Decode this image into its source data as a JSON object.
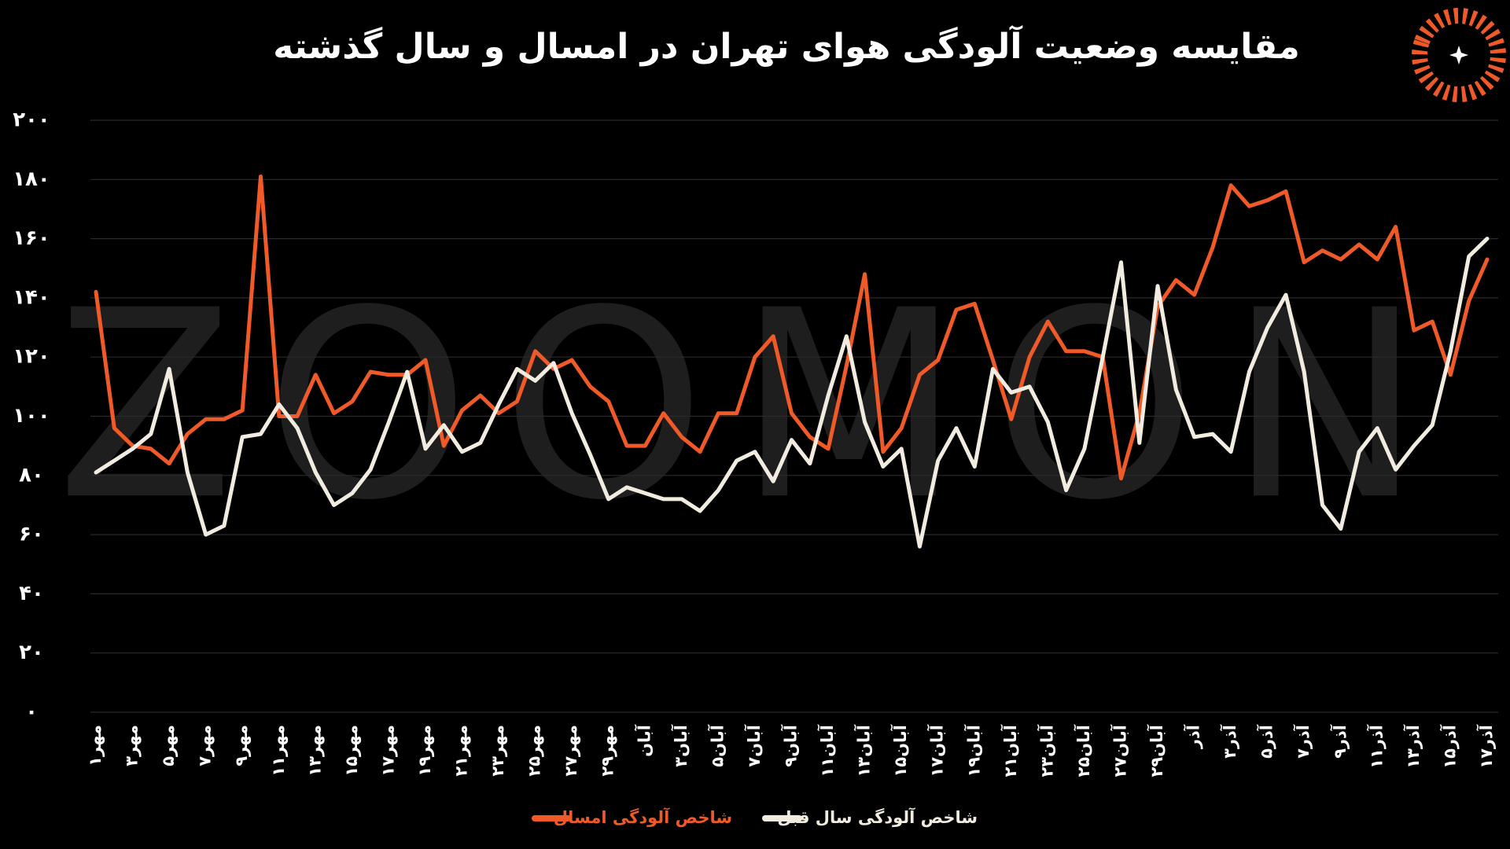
{
  "chart_data": {
    "type": "line",
    "title": "مقایسه وضعیت آلودگی هوای تهران در امسال و سال گذشته",
    "watermark": "ZOOMON",
    "categories": [
      "۱مهر",
      null,
      "۳مهر",
      null,
      "۵مهر",
      null,
      "۷مهر",
      null,
      "۹مهر",
      null,
      "۱۱مهر",
      null,
      "۱۳مهر",
      null,
      "۱۵مهر",
      null,
      "۱۷مهر",
      null,
      "۱۹مهر",
      null,
      "۲۱مهر",
      null,
      "۲۳مهر",
      null,
      "۲۵مهر",
      null,
      "۲۷مهر",
      null,
      "۲۹مهر",
      null,
      "آبان",
      null,
      "۳آبان",
      null,
      "۵آبان",
      null,
      "۷آبان",
      null,
      "۹آبان",
      null,
      "۱۱آبان",
      null,
      "۱۳آبان",
      null,
      "۱۵آبان",
      null,
      "۱۷آبان",
      null,
      "۱۹آبان",
      null,
      "۲۱آبان",
      null,
      "۲۳آبان",
      null,
      "۲۵آبان",
      null,
      "۲۷آبان",
      null,
      "۲۹آبان",
      null,
      "آذر",
      null,
      "۳آذر",
      null,
      "۵آذر",
      null,
      "۷آذر",
      null,
      "۹آذر",
      null,
      "۱۱آذر",
      null,
      "۱۳آذر",
      null,
      "۱۵آذر",
      null,
      "۱۷آذر"
    ],
    "series": [
      {
        "name": "شاخص آلودگی امسال",
        "color": "#f05a28",
        "values": [
          142,
          96,
          90,
          89,
          84,
          94,
          99,
          99,
          102,
          181,
          100,
          100,
          114,
          101,
          105,
          115,
          114,
          114,
          119,
          90,
          102,
          107,
          101,
          105,
          122,
          116,
          119,
          110,
          105,
          90,
          90,
          101,
          93,
          88,
          101,
          101,
          120,
          127,
          101,
          93,
          89,
          117,
          148,
          88,
          96,
          114,
          119,
          136,
          138,
          119,
          99,
          120,
          132,
          122,
          122,
          120,
          79,
          101,
          137,
          146,
          141,
          157,
          178,
          171,
          173,
          176,
          152,
          156,
          153,
          158,
          153,
          164,
          129,
          132,
          114,
          139,
          153
        ]
      },
      {
        "name": "شاخص آلودگی سال قبل",
        "color": "#f2ece0",
        "values": [
          81,
          85,
          89,
          94,
          116,
          81,
          60,
          63,
          93,
          94,
          104,
          96,
          81,
          70,
          74,
          82,
          98,
          115,
          89,
          97,
          88,
          91,
          104,
          116,
          112,
          118,
          101,
          87,
          72,
          76,
          74,
          72,
          72,
          68,
          75,
          85,
          88,
          78,
          92,
          84,
          107,
          127,
          98,
          83,
          89,
          56,
          85,
          96,
          83,
          116,
          108,
          110,
          98,
          75,
          89,
          120,
          152,
          91,
          144,
          109,
          93,
          94,
          88,
          115,
          130,
          141,
          115,
          70,
          62,
          88,
          96,
          82,
          90,
          97,
          122,
          154,
          160
        ]
      }
    ],
    "ylim": [
      0,
      200
    ],
    "yticks": [
      {
        "value": 0,
        "label": "۰"
      },
      {
        "value": 20,
        "label": "۲۰"
      },
      {
        "value": 40,
        "label": "۴۰"
      },
      {
        "value": 60,
        "label": "۶۰"
      },
      {
        "value": 80,
        "label": "۸۰"
      },
      {
        "value": 100,
        "label": "۱۰۰"
      },
      {
        "value": 120,
        "label": "۱۲۰"
      },
      {
        "value": 140,
        "label": "۱۴۰"
      },
      {
        "value": 160,
        "label": "۱۶۰"
      },
      {
        "value": 180,
        "label": "۱۸۰"
      },
      {
        "value": 200,
        "label": "۲۰۰"
      }
    ],
    "grid": true
  }
}
